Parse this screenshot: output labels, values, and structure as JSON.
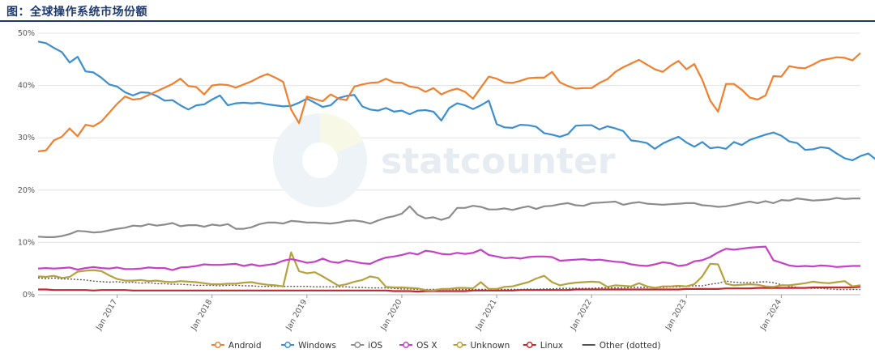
{
  "figure_title": "图：全球操作系统市场份额",
  "watermark": "statcounter",
  "chart_data": {
    "type": "line",
    "ylim": [
      0,
      50
    ],
    "yticks": [
      "0%",
      "10%",
      "20%",
      "30%",
      "40%",
      "50%"
    ],
    "xticks": [
      "Jan 2017",
      "Jan 2018",
      "Jan 2019",
      "Jan 2020",
      "Jan 2021",
      "Jan 2022",
      "Jan 2023",
      "Jan 2024"
    ],
    "x_start": "2016-03",
    "series": [
      {
        "name": "Android",
        "color": "#f07f2e",
        "dashed": false,
        "values": [
          27.4,
          27.6,
          29.5,
          30.2,
          31.8,
          30.3,
          32.5,
          32.2,
          33.1,
          34.8,
          36.5,
          37.9,
          37.3,
          37.5,
          38.2,
          38.9,
          39.6,
          40.3,
          41.3,
          39.9,
          39.7,
          38.3,
          40.0,
          40.2,
          40.1,
          39.6,
          40.2,
          40.8,
          41.6,
          42.2,
          41.5,
          40.7,
          35.4,
          32.8,
          37.9,
          37.4,
          37.0,
          38.3,
          37.5,
          37.2,
          39.8,
          40.2,
          40.5,
          40.6,
          41.3,
          40.6,
          40.5,
          39.8,
          39.6,
          38.8,
          39.5,
          38.3,
          39.0,
          39.4,
          38.8,
          37.5,
          39.6,
          41.7,
          41.3,
          40.6,
          40.5,
          40.9,
          41.4,
          41.5,
          41.5,
          42.6,
          40.6,
          39.9,
          39.4,
          39.5,
          39.5,
          40.5,
          41.2,
          42.6,
          43.5,
          44.2,
          44.9,
          44.0,
          43.1,
          42.6,
          43.8,
          44.7,
          43.1,
          44.1,
          41.1,
          37.1,
          35.0,
          40.3,
          40.3,
          39.2,
          37.7,
          37.3,
          38.1,
          41.8,
          41.7,
          43.7,
          43.4,
          43.3,
          44.0,
          44.8,
          45.1,
          45.4,
          45.3,
          44.8,
          46.2
        ]
      },
      {
        "name": "Windows",
        "color": "#3b8ed0",
        "dashed": false,
        "values": [
          48.4,
          48.1,
          47.2,
          46.4,
          44.4,
          45.5,
          42.7,
          42.5,
          41.5,
          40.2,
          39.8,
          38.7,
          38.1,
          38.7,
          38.6,
          38.0,
          37.1,
          37.2,
          36.2,
          35.4,
          36.2,
          36.4,
          37.3,
          38.1,
          36.2,
          36.6,
          36.7,
          36.6,
          36.7,
          36.4,
          36.2,
          36.0,
          36.1,
          36.7,
          37.5,
          36.7,
          35.9,
          36.2,
          37.6,
          38.0,
          38.2,
          36.0,
          35.4,
          35.2,
          35.7,
          35.0,
          35.2,
          34.5,
          35.2,
          35.3,
          35.0,
          33.3,
          35.7,
          36.6,
          36.2,
          35.5,
          36.2,
          37.1,
          32.6,
          32.0,
          31.9,
          32.5,
          32.4,
          32.1,
          30.9,
          30.6,
          30.2,
          30.7,
          32.3,
          32.4,
          32.4,
          31.6,
          32.2,
          31.8,
          31.3,
          29.5,
          29.3,
          29.0,
          27.9,
          28.9,
          29.6,
          30.2,
          29.1,
          28.3,
          29.2,
          28.0,
          28.2,
          27.9,
          29.2,
          28.6,
          29.6,
          30.1,
          30.6,
          31.0,
          30.4,
          29.3,
          29.0,
          27.7,
          27.8,
          28.2,
          28.0,
          27.0,
          26.1,
          25.7,
          26.5,
          27.0,
          25.8
        ]
      },
      {
        "name": "iOS",
        "color": "#8c8c8c",
        "dashed": false,
        "values": [
          11.1,
          11.0,
          11.0,
          11.2,
          11.6,
          12.2,
          12.1,
          11.9,
          12.0,
          12.3,
          12.6,
          12.8,
          13.2,
          13.1,
          13.5,
          13.2,
          13.4,
          13.7,
          13.1,
          13.3,
          13.3,
          13.0,
          13.4,
          13.2,
          13.5,
          12.6,
          12.6,
          12.9,
          13.5,
          13.8,
          13.8,
          13.6,
          14.1,
          14.0,
          13.8,
          13.8,
          13.7,
          13.6,
          13.8,
          14.1,
          14.2,
          14.0,
          13.6,
          14.2,
          14.7,
          15.0,
          15.5,
          16.9,
          15.3,
          14.6,
          14.8,
          14.3,
          14.8,
          16.6,
          16.6,
          17.0,
          16.8,
          16.3,
          16.3,
          16.5,
          16.2,
          16.6,
          16.9,
          16.4,
          16.9,
          17.0,
          17.3,
          17.5,
          17.1,
          17.0,
          17.5,
          17.6,
          17.7,
          17.8,
          17.2,
          17.5,
          17.7,
          17.4,
          17.3,
          17.2,
          17.3,
          17.4,
          17.5,
          17.5,
          17.1,
          17.0,
          16.8,
          16.9,
          17.2,
          17.5,
          17.8,
          17.5,
          17.9,
          17.5,
          18.1,
          18.0,
          18.4,
          18.2,
          18.0,
          18.1,
          18.2,
          18.5,
          18.3,
          18.4,
          18.4
        ]
      },
      {
        "name": "OS X",
        "color": "#c63fc6",
        "dashed": false,
        "values": [
          5.0,
          5.1,
          5.0,
          5.1,
          5.2,
          4.8,
          5.1,
          5.3,
          5.1,
          5.0,
          5.2,
          4.9,
          4.9,
          5.0,
          5.2,
          5.1,
          5.1,
          4.7,
          5.2,
          5.3,
          5.5,
          5.8,
          5.7,
          5.7,
          5.8,
          5.9,
          5.5,
          5.8,
          5.5,
          5.7,
          5.9,
          6.5,
          6.8,
          6.5,
          6.1,
          6.3,
          6.9,
          6.3,
          6.1,
          6.6,
          6.3,
          6.0,
          5.9,
          6.6,
          7.1,
          7.3,
          7.6,
          8.0,
          7.7,
          8.4,
          8.2,
          7.8,
          7.7,
          8.0,
          7.8,
          8.0,
          8.6,
          7.6,
          7.3,
          7.0,
          7.1,
          6.9,
          7.2,
          7.3,
          7.3,
          7.2,
          6.5,
          6.6,
          6.7,
          6.8,
          6.6,
          6.7,
          6.5,
          6.3,
          6.2,
          5.8,
          5.6,
          5.5,
          5.8,
          6.2,
          6.0,
          5.5,
          5.7,
          6.4,
          6.6,
          7.2,
          8.1,
          8.8,
          8.6,
          8.8,
          9.0,
          9.1,
          9.2,
          6.6,
          6.1,
          5.6,
          5.4,
          5.5,
          5.4,
          5.6,
          5.5,
          5.3,
          5.4,
          5.5,
          5.5
        ]
      },
      {
        "name": "Unknown",
        "color": "#b5a23c",
        "dashed": false,
        "values": [
          3.5,
          3.4,
          3.6,
          3.2,
          3.4,
          4.4,
          4.6,
          4.7,
          4.5,
          3.7,
          3.0,
          2.7,
          2.7,
          2.8,
          2.6,
          2.7,
          2.5,
          2.4,
          2.6,
          2.5,
          2.4,
          2.2,
          2.0,
          2.0,
          2.1,
          2.1,
          2.3,
          2.4,
          2.1,
          1.9,
          1.8,
          1.6,
          8.1,
          4.5,
          4.1,
          4.3,
          3.5,
          2.6,
          1.7,
          2.0,
          2.5,
          2.8,
          3.5,
          3.2,
          1.5,
          1.4,
          1.4,
          1.3,
          1.2,
          0.9,
          0.8,
          1.1,
          1.1,
          1.3,
          1.3,
          1.2,
          2.4,
          1.1,
          1.1,
          1.5,
          1.6,
          2.0,
          2.4,
          3.1,
          3.6,
          2.4,
          1.8,
          2.1,
          2.3,
          2.4,
          2.5,
          2.4,
          1.5,
          1.8,
          1.7,
          1.6,
          2.2,
          1.6,
          1.3,
          1.6,
          1.6,
          1.7,
          1.6,
          2.0,
          3.5,
          5.9,
          5.8,
          2.1,
          1.8,
          1.9,
          2.0,
          1.9,
          1.6,
          1.5,
          1.8,
          1.8,
          2.0,
          2.2,
          2.5,
          2.3,
          2.2,
          2.4,
          2.6,
          1.6,
          1.8
        ]
      },
      {
        "name": "Linux",
        "color": "#c0282e",
        "dashed": false,
        "values": [
          1.0,
          1.0,
          0.9,
          0.9,
          0.9,
          0.9,
          0.9,
          0.8,
          0.9,
          0.9,
          0.9,
          0.9,
          0.8,
          0.8,
          0.8,
          0.8,
          0.8,
          0.8,
          0.8,
          0.8,
          0.8,
          0.8,
          0.8,
          0.8,
          0.8,
          0.8,
          0.8,
          0.8,
          0.8,
          0.8,
          0.8,
          0.8,
          0.8,
          0.8,
          0.8,
          0.8,
          0.8,
          0.8,
          0.8,
          0.8,
          0.8,
          0.8,
          0.8,
          0.8,
          0.8,
          0.7,
          0.7,
          0.7,
          0.6,
          0.7,
          0.7,
          0.7,
          0.7,
          0.7,
          0.7,
          0.8,
          0.8,
          0.8,
          0.8,
          0.8,
          0.8,
          0.9,
          0.9,
          0.9,
          0.9,
          0.9,
          0.9,
          0.9,
          1.0,
          1.0,
          1.0,
          1.0,
          1.0,
          1.0,
          1.0,
          1.0,
          1.0,
          1.0,
          1.0,
          1.0,
          1.0,
          1.0,
          1.1,
          1.1,
          1.1,
          1.1,
          1.1,
          1.2,
          1.2,
          1.2,
          1.2,
          1.3,
          1.3,
          1.3,
          1.3,
          1.3,
          1.3,
          1.3,
          1.4,
          1.4,
          1.4,
          1.4,
          1.4,
          1.4,
          1.5
        ]
      },
      {
        "name": "Other (dotted)",
        "color": "#555555",
        "dashed": true,
        "values": [
          3.2,
          3.1,
          3.2,
          3.0,
          3.0,
          2.9,
          2.8,
          2.6,
          2.5,
          2.4,
          2.5,
          2.3,
          2.4,
          2.2,
          2.3,
          2.1,
          2.1,
          2.0,
          2.0,
          1.9,
          1.8,
          1.8,
          1.8,
          1.7,
          1.8,
          1.8,
          1.7,
          1.7,
          1.6,
          1.6,
          1.6,
          1.6,
          1.6,
          1.6,
          1.6,
          1.5,
          1.5,
          1.5,
          1.5,
          1.5,
          1.4,
          1.4,
          1.3,
          1.3,
          1.3,
          1.2,
          1.1,
          1.1,
          1.0,
          1.0,
          1.0,
          1.0,
          1.0,
          1.0,
          1.0,
          1.0,
          1.0,
          1.0,
          1.0,
          1.0,
          1.0,
          1.0,
          1.1,
          1.0,
          1.1,
          1.1,
          1.2,
          1.2,
          1.2,
          1.2,
          1.2,
          1.3,
          1.3,
          1.3,
          1.3,
          1.4,
          1.4,
          1.4,
          1.4,
          1.4,
          1.5,
          1.5,
          1.6,
          1.7,
          1.7,
          2.0,
          2.2,
          2.6,
          2.4,
          2.3,
          2.3,
          2.4,
          2.5,
          2.3,
          1.9,
          1.6,
          1.4,
          1.3,
          1.2,
          1.2,
          1.1,
          1.0,
          1.0,
          1.0,
          1.0
        ]
      }
    ]
  }
}
